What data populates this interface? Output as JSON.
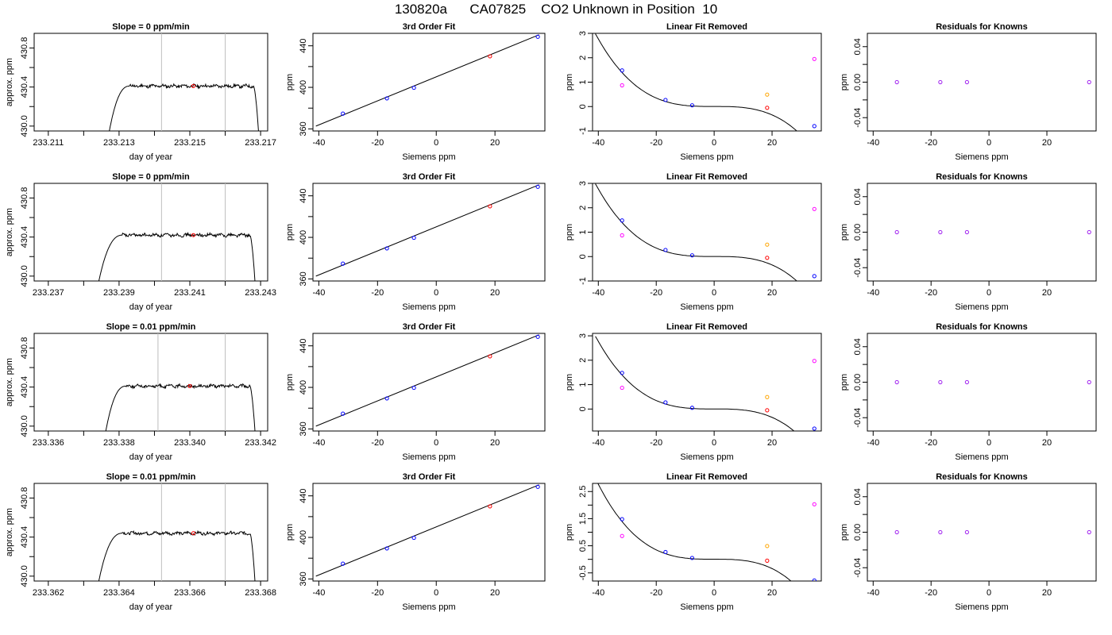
{
  "figure": {
    "title": "130820a      CA07825    CO2 Unknown in Position  10"
  },
  "colors": {
    "axis": "#000000",
    "trace": "#000000",
    "gray_marker": "#bebebe",
    "red": "#ff0000",
    "blue": "#0000ff",
    "orange": "#ffa500",
    "magenta": "#ff00ff",
    "purple": "#a020f0"
  },
  "chart_data": [
    {
      "type": "line",
      "row": 0,
      "panel": "trace",
      "title": "Slope =  0  ppm/min",
      "xlabel": "day of year",
      "ylabel": "approx. ppm",
      "xlim": [
        233.2106,
        233.2172
      ],
      "ylim": [
        429.95,
        430.95
      ],
      "xticks": [
        233.211,
        233.212,
        233.213,
        233.214,
        233.215,
        233.216,
        233.217
      ],
      "xtick_labels": [
        "233.211",
        "",
        "233.213",
        "",
        "233.215",
        "",
        "233.217"
      ],
      "yticks": [
        430.0,
        430.2,
        430.4,
        430.6,
        430.8
      ],
      "ytick_labels": [
        "430.0",
        "",
        "430.4",
        "",
        "430.8"
      ],
      "trace": {
        "x_start": 233.2127,
        "x_rise_end": 233.2133,
        "x_fall_start": 233.2168,
        "x_end": 233.21695,
        "y_start": 429.9,
        "y_plateau": 430.41,
        "y_end": 429.9
      },
      "vlines": [
        233.2142,
        233.216
      ],
      "point": {
        "x": 233.2151,
        "y": 430.41
      }
    },
    {
      "type": "scatter",
      "row": 0,
      "panel": "fit",
      "title": "3rd Order Fit",
      "xlabel": "Siemens ppm",
      "ylabel": "ppm",
      "xlim": [
        -42,
        37
      ],
      "ylim": [
        358,
        452
      ],
      "xticks": [
        -40,
        -20,
        0,
        20
      ],
      "yticks": [
        360,
        380,
        400,
        420,
        440
      ],
      "ytick_labels": [
        "360",
        "",
        "400",
        "",
        "440"
      ],
      "line": {
        "x": [
          -41,
          35
        ],
        "y": [
          362.7,
          450.6
        ]
      },
      "points": [
        {
          "x": -31.8,
          "y": 374.7,
          "color": "blue"
        },
        {
          "x": -16.8,
          "y": 389.4,
          "color": "blue"
        },
        {
          "x": -7.6,
          "y": 399.6,
          "color": "blue"
        },
        {
          "x": 18.3,
          "y": 429.9,
          "color": "red"
        },
        {
          "x": 34.6,
          "y": 448.7,
          "color": "blue"
        }
      ]
    },
    {
      "type": "scatter",
      "row": 0,
      "panel": "linear-removed",
      "title": "Linear Fit Removed",
      "xlabel": "Siemens ppm",
      "ylabel": "ppm",
      "xlim": [
        -42,
        37
      ],
      "ylim": [
        -1,
        3
      ],
      "xticks": [
        -40,
        -20,
        0,
        20
      ],
      "yticks": [
        -1,
        0,
        1,
        2,
        3
      ],
      "ytick_labels": [
        "-1",
        "0",
        "1",
        "2",
        "3"
      ],
      "curve": {
        "x_from": -41,
        "x_to": 35,
        "coeffs": [
          0.0022,
          -0.9998,
          -0.0015,
          -3.55e-05
        ]
      },
      "points": [
        {
          "x": -31.8,
          "y": 1.48,
          "color": "blue"
        },
        {
          "x": -16.8,
          "y": 0.27,
          "color": "blue"
        },
        {
          "x": -7.6,
          "y": 0.05,
          "color": "blue"
        },
        {
          "x": 18.3,
          "y": -0.05,
          "color": "red"
        },
        {
          "x": 34.6,
          "y": -0.8,
          "color": "blue"
        },
        {
          "x": -31.8,
          "y": 0.87,
          "color": "magenta"
        },
        {
          "x": 18.3,
          "y": 0.49,
          "color": "orange"
        },
        {
          "x": 34.6,
          "y": 1.95,
          "color": "magenta"
        }
      ]
    },
    {
      "type": "scatter",
      "row": 0,
      "panel": "residuals",
      "title": "Residuals for Knowns",
      "xlabel": "Siemens ppm",
      "ylabel": "ppm",
      "xlim": [
        -42,
        37
      ],
      "ylim": [
        -0.055,
        0.055
      ],
      "xticks": [
        -40,
        -20,
        0,
        20
      ],
      "yticks": [
        -0.04,
        -0.02,
        0.0,
        0.02,
        0.04
      ],
      "ytick_labels": [
        "-0.04",
        "",
        "0.00",
        "",
        "0.04"
      ],
      "points": [
        {
          "x": -31.8,
          "y": 0.0,
          "color": "purple"
        },
        {
          "x": -16.8,
          "y": 0.0,
          "color": "purple"
        },
        {
          "x": -7.6,
          "y": 0.0,
          "color": "purple"
        },
        {
          "x": 34.6,
          "y": 0.0,
          "color": "purple"
        }
      ]
    },
    {
      "type": "line",
      "row": 1,
      "panel": "trace",
      "title": "Slope =  0  ppm/min",
      "xlabel": "day of year",
      "ylabel": "approx. ppm",
      "xlim": [
        233.2366,
        233.2432
      ],
      "ylim": [
        429.95,
        430.95
      ],
      "xticks": [
        233.237,
        233.238,
        233.239,
        233.24,
        233.241,
        233.242,
        233.243
      ],
      "xtick_labels": [
        "233.237",
        "",
        "233.239",
        "",
        "233.241",
        "",
        "233.243"
      ],
      "yticks": [
        430.0,
        430.2,
        430.4,
        430.6,
        430.8
      ],
      "ytick_labels": [
        "430.0",
        "",
        "430.4",
        "",
        "430.8"
      ],
      "trace": {
        "x_start": 233.2384,
        "x_rise_end": 233.2391,
        "x_fall_start": 233.2427,
        "x_end": 233.24285,
        "y_start": 429.9,
        "y_plateau": 430.42,
        "y_end": 429.9
      },
      "vlines": [
        233.2402,
        233.242
      ],
      "point": {
        "x": 233.2411,
        "y": 430.42
      }
    },
    {
      "type": "scatter",
      "row": 1,
      "panel": "fit",
      "title": "3rd Order Fit",
      "xlabel": "Siemens ppm",
      "ylabel": "ppm",
      "xlim": [
        -42,
        37
      ],
      "ylim": [
        358,
        452
      ],
      "xticks": [
        -40,
        -20,
        0,
        20
      ],
      "yticks": [
        360,
        380,
        400,
        420,
        440
      ],
      "ytick_labels": [
        "360",
        "",
        "400",
        "",
        "440"
      ],
      "line": {
        "x": [
          -41,
          35
        ],
        "y": [
          362.7,
          450.6
        ]
      },
      "points": [
        {
          "x": -31.8,
          "y": 374.7,
          "color": "blue"
        },
        {
          "x": -16.8,
          "y": 389.4,
          "color": "blue"
        },
        {
          "x": -7.6,
          "y": 399.6,
          "color": "blue"
        },
        {
          "x": 18.3,
          "y": 429.9,
          "color": "red"
        },
        {
          "x": 34.6,
          "y": 448.7,
          "color": "blue"
        }
      ]
    },
    {
      "type": "scatter",
      "row": 1,
      "panel": "linear-removed",
      "title": "Linear Fit Removed",
      "xlabel": "Siemens ppm",
      "ylabel": "ppm",
      "xlim": [
        -42,
        37
      ],
      "ylim": [
        -1,
        3
      ],
      "xticks": [
        -40,
        -20,
        0,
        20
      ],
      "yticks": [
        -1,
        0,
        1,
        2,
        3
      ],
      "ytick_labels": [
        "-1",
        "0",
        "1",
        "2",
        "3"
      ],
      "curve": {
        "x_from": -41,
        "x_to": 35,
        "coeffs": [
          0.0022,
          -0.9998,
          -0.0015,
          -3.55e-05
        ]
      },
      "points": [
        {
          "x": -31.8,
          "y": 1.48,
          "color": "blue"
        },
        {
          "x": -16.8,
          "y": 0.27,
          "color": "blue"
        },
        {
          "x": -7.6,
          "y": 0.05,
          "color": "blue"
        },
        {
          "x": 18.3,
          "y": -0.05,
          "color": "red"
        },
        {
          "x": 34.6,
          "y": -0.8,
          "color": "blue"
        },
        {
          "x": -31.8,
          "y": 0.87,
          "color": "magenta"
        },
        {
          "x": 18.3,
          "y": 0.49,
          "color": "orange"
        },
        {
          "x": 34.6,
          "y": 1.95,
          "color": "magenta"
        }
      ]
    },
    {
      "type": "scatter",
      "row": 1,
      "panel": "residuals",
      "title": "Residuals for Knowns",
      "xlabel": "Siemens ppm",
      "ylabel": "ppm",
      "xlim": [
        -42,
        37
      ],
      "ylim": [
        -0.055,
        0.055
      ],
      "xticks": [
        -40,
        -20,
        0,
        20
      ],
      "yticks": [
        -0.04,
        -0.02,
        0.0,
        0.02,
        0.04
      ],
      "ytick_labels": [
        "-0.04",
        "",
        "0.00",
        "",
        "0.04"
      ],
      "points": [
        {
          "x": -31.8,
          "y": 0.0,
          "color": "purple"
        },
        {
          "x": -16.8,
          "y": 0.0,
          "color": "purple"
        },
        {
          "x": -7.6,
          "y": 0.0,
          "color": "purple"
        },
        {
          "x": 34.6,
          "y": 0.0,
          "color": "purple"
        }
      ]
    },
    {
      "type": "line",
      "row": 2,
      "panel": "trace",
      "title": "Slope =  0.01  ppm/min",
      "xlabel": "day of year",
      "ylabel": "approx. ppm",
      "xlim": [
        233.3356,
        233.3422
      ],
      "ylim": [
        429.95,
        430.95
      ],
      "xticks": [
        233.336,
        233.337,
        233.338,
        233.339,
        233.34,
        233.341,
        233.342
      ],
      "xtick_labels": [
        "233.336",
        "",
        "233.338",
        "",
        "233.340",
        "",
        "233.342"
      ],
      "yticks": [
        430.0,
        430.2,
        430.4,
        430.6,
        430.8
      ],
      "ytick_labels": [
        "430.0",
        "",
        "430.4",
        "",
        "430.8"
      ],
      "trace": {
        "x_start": 233.3376,
        "x_rise_end": 233.3382,
        "x_fall_start": 233.3417,
        "x_end": 233.34185,
        "y_start": 429.9,
        "y_plateau": 430.41,
        "y_end": 429.9
      },
      "vlines": [
        233.3391,
        233.341
      ],
      "point": {
        "x": 233.34,
        "y": 430.41
      }
    },
    {
      "type": "scatter",
      "row": 2,
      "panel": "fit",
      "title": "3rd Order Fit",
      "xlabel": "Siemens ppm",
      "ylabel": "ppm",
      "xlim": [
        -42,
        37
      ],
      "ylim": [
        358,
        452
      ],
      "xticks": [
        -40,
        -20,
        0,
        20
      ],
      "yticks": [
        360,
        380,
        400,
        420,
        440
      ],
      "ytick_labels": [
        "360",
        "",
        "400",
        "",
        "440"
      ],
      "line": {
        "x": [
          -41,
          35
        ],
        "y": [
          362.7,
          450.6
        ]
      },
      "points": [
        {
          "x": -31.8,
          "y": 374.7,
          "color": "blue"
        },
        {
          "x": -16.8,
          "y": 389.4,
          "color": "blue"
        },
        {
          "x": -7.6,
          "y": 399.6,
          "color": "blue"
        },
        {
          "x": 18.3,
          "y": 429.9,
          "color": "red"
        },
        {
          "x": 34.6,
          "y": 448.7,
          "color": "blue"
        }
      ]
    },
    {
      "type": "scatter",
      "row": 2,
      "panel": "linear-removed",
      "title": "Linear Fit Removed",
      "xlabel": "Siemens ppm",
      "ylabel": "ppm",
      "xlim": [
        -42,
        37
      ],
      "ylim": [
        -0.9,
        3.1
      ],
      "xticks": [
        -40,
        -20,
        0,
        20
      ],
      "yticks": [
        0,
        1,
        2,
        3
      ],
      "ytick_labels": [
        "0",
        "1",
        "2",
        "3"
      ],
      "curve": {
        "x_from": -41,
        "x_to": 35,
        "coeffs": [
          0.0022,
          -0.9998,
          -0.0015,
          -3.55e-05
        ]
      },
      "points": [
        {
          "x": -31.8,
          "y": 1.48,
          "color": "blue"
        },
        {
          "x": -16.8,
          "y": 0.27,
          "color": "blue"
        },
        {
          "x": -7.6,
          "y": 0.05,
          "color": "blue"
        },
        {
          "x": 18.3,
          "y": -0.05,
          "color": "red"
        },
        {
          "x": 34.6,
          "y": -0.8,
          "color": "blue"
        },
        {
          "x": -31.8,
          "y": 0.87,
          "color": "magenta"
        },
        {
          "x": 18.3,
          "y": 0.49,
          "color": "orange"
        },
        {
          "x": 34.6,
          "y": 1.97,
          "color": "magenta"
        }
      ]
    },
    {
      "type": "scatter",
      "row": 2,
      "panel": "residuals",
      "title": "Residuals for Knowns",
      "xlabel": "Siemens ppm",
      "ylabel": "ppm",
      "xlim": [
        -42,
        37
      ],
      "ylim": [
        -0.055,
        0.055
      ],
      "xticks": [
        -40,
        -20,
        0,
        20
      ],
      "yticks": [
        -0.04,
        -0.02,
        0.0,
        0.02,
        0.04
      ],
      "ytick_labels": [
        "-0.04",
        "",
        "0.00",
        "",
        "0.04"
      ],
      "points": [
        {
          "x": -31.8,
          "y": 0.0,
          "color": "purple"
        },
        {
          "x": -16.8,
          "y": 0.0,
          "color": "purple"
        },
        {
          "x": -7.6,
          "y": 0.0,
          "color": "purple"
        },
        {
          "x": 34.6,
          "y": 0.0,
          "color": "purple"
        }
      ]
    },
    {
      "type": "line",
      "row": 3,
      "panel": "trace",
      "title": "Slope =  0.01  ppm/min",
      "xlabel": "day of year",
      "ylabel": "approx. ppm",
      "xlim": [
        233.3616,
        233.3682
      ],
      "ylim": [
        429.95,
        430.95
      ],
      "xticks": [
        233.362,
        233.363,
        233.364,
        233.365,
        233.366,
        233.367,
        233.368
      ],
      "xtick_labels": [
        "233.362",
        "",
        "233.364",
        "",
        "233.366",
        "",
        "233.368"
      ],
      "yticks": [
        430.0,
        430.2,
        430.4,
        430.6,
        430.8
      ],
      "ytick_labels": [
        "430.0",
        "",
        "430.4",
        "",
        "430.8"
      ],
      "trace": {
        "x_start": 233.3634,
        "x_rise_end": 233.3641,
        "x_fall_start": 233.3677,
        "x_end": 233.36785,
        "y_start": 429.9,
        "y_plateau": 430.44,
        "y_end": 429.9
      },
      "vlines": [
        233.3652,
        233.367
      ],
      "point": {
        "x": 233.3661,
        "y": 430.44
      }
    },
    {
      "type": "scatter",
      "row": 3,
      "panel": "fit",
      "title": "3rd Order Fit",
      "xlabel": "Siemens ppm",
      "ylabel": "ppm",
      "xlim": [
        -42,
        37
      ],
      "ylim": [
        358,
        452
      ],
      "xticks": [
        -40,
        -20,
        0,
        20
      ],
      "yticks": [
        360,
        380,
        400,
        420,
        440
      ],
      "ytick_labels": [
        "360",
        "",
        "400",
        "",
        "440"
      ],
      "line": {
        "x": [
          -41,
          35
        ],
        "y": [
          362.7,
          450.6
        ]
      },
      "points": [
        {
          "x": -31.8,
          "y": 374.7,
          "color": "blue"
        },
        {
          "x": -16.8,
          "y": 389.4,
          "color": "blue"
        },
        {
          "x": -7.6,
          "y": 399.6,
          "color": "blue"
        },
        {
          "x": 18.3,
          "y": 429.9,
          "color": "red"
        },
        {
          "x": 34.6,
          "y": 448.7,
          "color": "blue"
        }
      ]
    },
    {
      "type": "scatter",
      "row": 3,
      "panel": "linear-removed",
      "title": "Linear Fit Removed",
      "xlabel": "Siemens ppm",
      "ylabel": "ppm",
      "xlim": [
        -42,
        37
      ],
      "ylim": [
        -0.8,
        2.8
      ],
      "xticks": [
        -40,
        -20,
        0,
        20
      ],
      "yticks": [
        -0.5,
        0.0,
        0.5,
        1.0,
        1.5,
        2.0,
        2.5
      ],
      "ytick_labels": [
        "-0.5",
        "",
        "0.5",
        "",
        "1.5",
        "",
        "2.5"
      ],
      "curve": {
        "x_from": -41,
        "x_to": 35,
        "coeffs": [
          0.0022,
          -0.9998,
          -0.0015,
          -3.55e-05
        ]
      },
      "points": [
        {
          "x": -31.8,
          "y": 1.48,
          "color": "blue"
        },
        {
          "x": -16.8,
          "y": 0.27,
          "color": "blue"
        },
        {
          "x": -7.6,
          "y": 0.05,
          "color": "blue"
        },
        {
          "x": 18.3,
          "y": -0.05,
          "color": "red"
        },
        {
          "x": 34.6,
          "y": -0.78,
          "color": "blue"
        },
        {
          "x": -31.8,
          "y": 0.86,
          "color": "magenta"
        },
        {
          "x": 18.3,
          "y": 0.49,
          "color": "orange"
        },
        {
          "x": 34.6,
          "y": 2.03,
          "color": "magenta"
        }
      ]
    },
    {
      "type": "scatter",
      "row": 3,
      "panel": "residuals",
      "title": "Residuals for Knowns",
      "xlabel": "Siemens ppm",
      "ylabel": "ppm",
      "xlim": [
        -42,
        37
      ],
      "ylim": [
        -0.055,
        0.055
      ],
      "xticks": [
        -40,
        -20,
        0,
        20
      ],
      "yticks": [
        -0.04,
        -0.02,
        0.0,
        0.02,
        0.04
      ],
      "ytick_labels": [
        "-0.04",
        "",
        "0.00",
        "",
        "0.04"
      ],
      "points": [
        {
          "x": -31.8,
          "y": 0.0,
          "color": "purple"
        },
        {
          "x": -16.8,
          "y": 0.0,
          "color": "purple"
        },
        {
          "x": -7.6,
          "y": 0.0,
          "color": "purple"
        },
        {
          "x": 34.6,
          "y": 0.0,
          "color": "purple"
        }
      ]
    }
  ]
}
